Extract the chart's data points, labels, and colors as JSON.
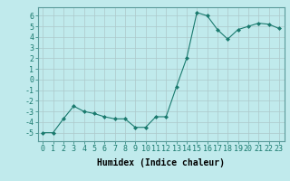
{
  "x": [
    0,
    1,
    2,
    3,
    4,
    5,
    6,
    7,
    8,
    9,
    10,
    11,
    12,
    13,
    14,
    15,
    16,
    17,
    18,
    19,
    20,
    21,
    22,
    23
  ],
  "y": [
    -5,
    -5,
    -3.7,
    -2.5,
    -3,
    -3.2,
    -3.5,
    -3.7,
    -3.7,
    -4.5,
    -4.5,
    -3.5,
    -3.5,
    -0.7,
    2,
    6.3,
    6,
    4.7,
    3.8,
    4.7,
    5,
    5.3,
    5.2,
    4.8
  ],
  "line_color": "#1a7a6e",
  "bg_color": "#c0eaec",
  "grid_major_color": "#b0c8c8",
  "grid_minor_color": "#d0e8e8",
  "xlabel": "Humidex (Indice chaleur)",
  "ylim": [
    -5.8,
    6.8
  ],
  "xlim": [
    -0.5,
    23.5
  ],
  "yticks": [
    -5,
    -4,
    -3,
    -2,
    -1,
    0,
    1,
    2,
    3,
    4,
    5,
    6
  ],
  "xticks": [
    0,
    1,
    2,
    3,
    4,
    5,
    6,
    7,
    8,
    9,
    10,
    11,
    12,
    13,
    14,
    15,
    16,
    17,
    18,
    19,
    20,
    21,
    22,
    23
  ],
  "xtick_labels": [
    "0",
    "1",
    "2",
    "3",
    "4",
    "5",
    "6",
    "7",
    "8",
    "9",
    "10",
    "11",
    "12",
    "13",
    "14",
    "15",
    "16",
    "17",
    "18",
    "19",
    "20",
    "21",
    "22",
    "23"
  ],
  "tick_fontsize": 6,
  "xlabel_fontsize": 7,
  "marker": "D",
  "markersize": 2,
  "linewidth": 0.8
}
